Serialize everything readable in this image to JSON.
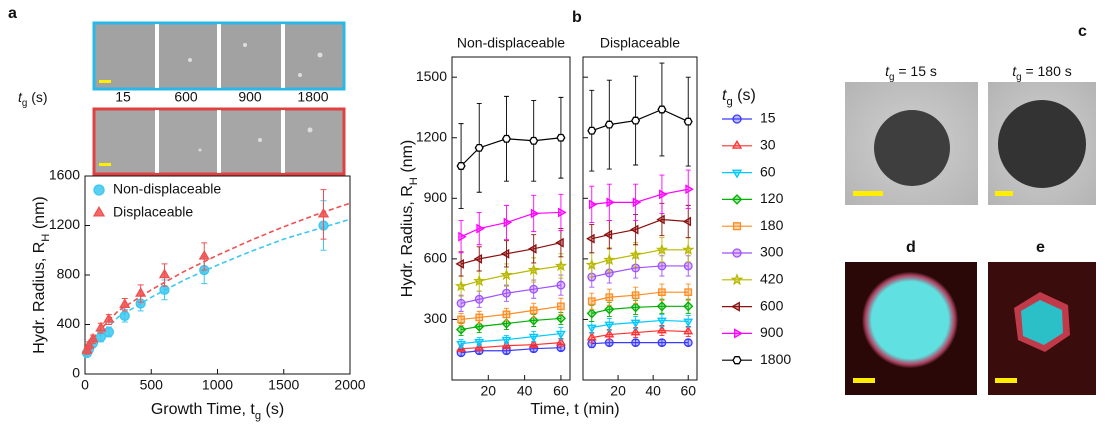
{
  "panel_labels": [
    "a",
    "b",
    "c",
    "d",
    "e"
  ],
  "image_strip": {
    "label": [
      "t",
      "g",
      " (s)"
    ],
    "times": [
      "15",
      "600",
      "900",
      "1800"
    ]
  },
  "tem_images": [
    [
      "t",
      "g",
      " = 15 s"
    ],
    [
      "t",
      "g",
      " = 180 s"
    ]
  ],
  "chart_data": [
    {
      "type": "scatter",
      "x_label": [
        "Growth Time, t",
        "g",
        " (s)"
      ],
      "y_label": [
        "Hydr. Radius, R",
        "H",
        " (nm)"
      ],
      "xlim": [
        0,
        2000
      ],
      "xticks": [
        0,
        500,
        1000,
        1500,
        2000
      ],
      "ylim": [
        0,
        1600
      ],
      "yticks": [
        0,
        400,
        800,
        1200,
        1600
      ],
      "legend": "upper left",
      "x": [
        15,
        30,
        60,
        120,
        180,
        300,
        420,
        600,
        900,
        1800
      ],
      "series": [
        {
          "name": "Non-displaceable",
          "color": "#3cc8f0",
          "marker": "circle",
          "values": [
            170,
            200,
            250,
            300,
            340,
            470,
            570,
            680,
            840,
            1200
          ],
          "errors": [
            30,
            30,
            35,
            40,
            40,
            50,
            60,
            80,
            110,
            200
          ]
        },
        {
          "name": "Displaceable",
          "color": "#f05050",
          "marker": "triangle-up",
          "values": [
            190,
            230,
            280,
            370,
            440,
            560,
            650,
            800,
            950,
            1290
          ],
          "errors": [
            30,
            30,
            35,
            40,
            40,
            50,
            70,
            90,
            110,
            200
          ]
        }
      ],
      "fits": [
        {
          "color": "#3cc8f0",
          "x": [
            0,
            100,
            250,
            500,
            750,
            1000,
            1250,
            1500,
            1750,
            2000
          ],
          "values": [
            150,
            300,
            460,
            620,
            760,
            880,
            990,
            1090,
            1170,
            1250
          ]
        },
        {
          "color": "#f05050",
          "x": [
            0,
            100,
            250,
            500,
            750,
            1000,
            1250,
            1500,
            1750,
            2000
          ],
          "values": [
            170,
            340,
            510,
            680,
            830,
            960,
            1080,
            1190,
            1290,
            1380
          ]
        }
      ]
    },
    {
      "type": "line",
      "facets": [
        "Non-displaceable",
        "Displaceable"
      ],
      "x_label": "Time, t (min)",
      "y_label": [
        "Hydr. Radius, R",
        "H",
        " (nm)"
      ],
      "xlim": [
        0,
        65
      ],
      "xticks": [
        20,
        40,
        60
      ],
      "ylim": [
        0,
        1600
      ],
      "yticks": [
        300,
        600,
        900,
        1200,
        1500
      ],
      "legend_title": [
        "t",
        "g",
        " (s)"
      ],
      "x": [
        5,
        15,
        30,
        45,
        60
      ],
      "series": [
        {
          "name": "15",
          "color": "#3a3aff",
          "marker": "circle",
          "values": [
            [
              135,
              145,
              145,
              155,
              160
            ],
            [
              180,
              185,
              185,
              185,
              185
            ]
          ],
          "errors": [
            [
              15,
              15,
              15,
              15,
              15
            ],
            [
              20,
              15,
              15,
              15,
              15
            ]
          ]
        },
        {
          "name": "30",
          "color": "#ff3030",
          "marker": "triangle-up",
          "values": [
            [
              155,
              160,
              170,
              175,
              185
            ],
            [
              210,
              225,
              235,
              245,
              240
            ]
          ],
          "errors": [
            [
              15,
              15,
              15,
              15,
              20
            ],
            [
              25,
              25,
              25,
              25,
              25
            ]
          ]
        },
        {
          "name": "60",
          "color": "#00c8ff",
          "marker": "triangle-down",
          "values": [
            [
              180,
              190,
              200,
              215,
              230
            ],
            [
              260,
              275,
              285,
              295,
              290
            ]
          ],
          "errors": [
            [
              20,
              20,
              20,
              25,
              30
            ],
            [
              30,
              30,
              30,
              30,
              30
            ]
          ]
        },
        {
          "name": "120",
          "color": "#00b000",
          "marker": "diamond",
          "values": [
            [
              250,
              265,
              280,
              295,
              305
            ],
            [
              330,
              350,
              360,
              365,
              365
            ]
          ],
          "errors": [
            [
              30,
              30,
              30,
              30,
              30
            ],
            [
              40,
              35,
              35,
              35,
              35
            ]
          ]
        },
        {
          "name": "180",
          "color": "#ff8c20",
          "marker": "square",
          "values": [
            [
              300,
              310,
              325,
              345,
              365
            ],
            [
              390,
              410,
              420,
              435,
              435
            ]
          ],
          "errors": [
            [
              30,
              30,
              30,
              35,
              40
            ],
            [
              40,
              40,
              40,
              40,
              40
            ]
          ]
        },
        {
          "name": "300",
          "color": "#a050ff",
          "marker": "circle",
          "values": [
            [
              380,
              400,
              430,
              450,
              470
            ],
            [
              510,
              530,
              555,
              565,
              565
            ]
          ],
          "errors": [
            [
              40,
              40,
              40,
              45,
              50
            ],
            [
              50,
              50,
              50,
              50,
              50
            ]
          ]
        },
        {
          "name": "420",
          "color": "#b8b800",
          "marker": "star",
          "values": [
            [
              465,
              490,
              520,
              545,
              565
            ],
            [
              570,
              595,
              620,
              645,
              645
            ]
          ],
          "errors": [
            [
              50,
              50,
              55,
              60,
              60
            ],
            [
              60,
              60,
              60,
              60,
              60
            ]
          ]
        },
        {
          "name": "600",
          "color": "#8b1010",
          "marker": "triangle-left",
          "values": [
            [
              575,
              600,
              625,
              650,
              680
            ],
            [
              700,
              720,
              745,
              795,
              785
            ]
          ],
          "errors": [
            [
              60,
              60,
              65,
              70,
              70
            ],
            [
              70,
              70,
              75,
              80,
              80
            ]
          ]
        },
        {
          "name": "900",
          "color": "#ff00ff",
          "marker": "triangle-right",
          "values": [
            [
              710,
              750,
              780,
              825,
              830
            ],
            [
              870,
              880,
              880,
              920,
              945
            ]
          ],
          "errors": [
            [
              80,
              80,
              85,
              90,
              90
            ],
            [
              90,
              90,
              90,
              95,
              95
            ]
          ]
        },
        {
          "name": "1800",
          "color": "#000000",
          "marker": "hexagon",
          "values": [
            [
              1060,
              1150,
              1195,
              1185,
              1200
            ],
            [
              1235,
              1265,
              1285,
              1340,
              1280
            ]
          ],
          "errors": [
            [
              210,
              220,
              210,
              200,
              200
            ],
            [
              200,
              220,
              220,
              230,
              220
            ]
          ]
        }
      ]
    }
  ]
}
